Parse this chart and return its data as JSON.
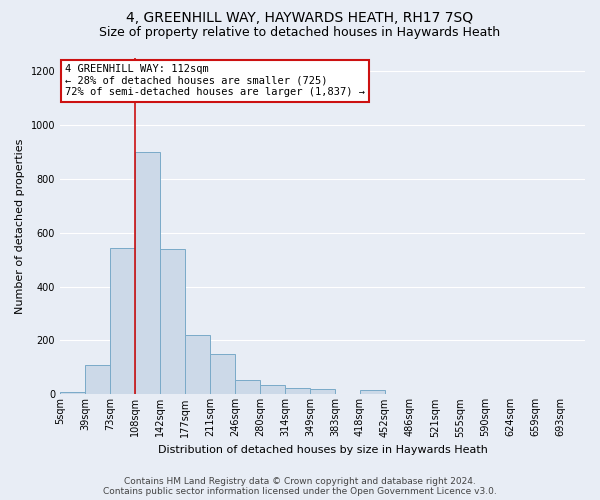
{
  "title": "4, GREENHILL WAY, HAYWARDS HEATH, RH17 7SQ",
  "subtitle": "Size of property relative to detached houses in Haywards Heath",
  "xlabel": "Distribution of detached houses by size in Haywards Heath",
  "ylabel": "Number of detached properties",
  "footer_line1": "Contains HM Land Registry data © Crown copyright and database right 2024.",
  "footer_line2": "Contains public sector information licensed under the Open Government Licence v3.0.",
  "bin_labels": [
    "5sqm",
    "39sqm",
    "73sqm",
    "108sqm",
    "142sqm",
    "177sqm",
    "211sqm",
    "246sqm",
    "280sqm",
    "314sqm",
    "349sqm",
    "383sqm",
    "418sqm",
    "452sqm",
    "486sqm",
    "521sqm",
    "555sqm",
    "590sqm",
    "624sqm",
    "659sqm",
    "693sqm"
  ],
  "bar_heights": [
    10,
    110,
    545,
    900,
    540,
    220,
    150,
    55,
    35,
    25,
    20,
    0,
    15,
    0,
    0,
    0,
    0,
    0,
    0,
    0,
    0
  ],
  "bar_color": "#ccd9e8",
  "bar_edge_color": "#7aaac8",
  "annotation_text": "4 GREENHILL WAY: 112sqm\n← 28% of detached houses are smaller (725)\n72% of semi-detached houses are larger (1,837) →",
  "annotation_box_color": "#ffffff",
  "annotation_box_edge_color": "#cc1111",
  "vline_color": "#cc1111",
  "vline_index": 3,
  "ylim": [
    0,
    1250
  ],
  "background_color": "#e8edf5",
  "plot_background_color": "#e8edf5",
  "grid_color": "#ffffff",
  "title_fontsize": 10,
  "subtitle_fontsize": 9,
  "axis_label_fontsize": 8,
  "tick_fontsize": 7,
  "footer_fontsize": 6.5,
  "annotation_fontsize": 7.5
}
